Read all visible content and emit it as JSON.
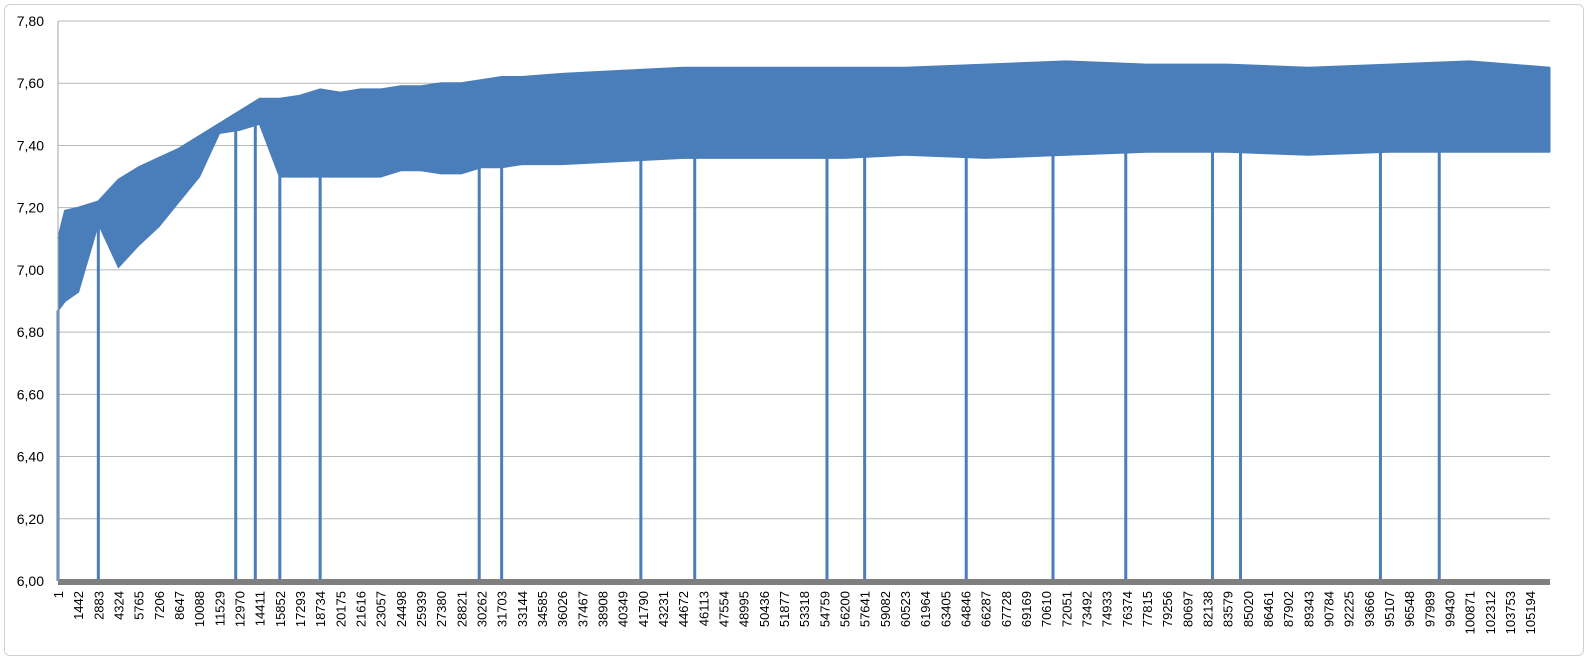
{
  "chart_data": {
    "type": "line",
    "title": "",
    "xlabel": "",
    "ylabel": "",
    "ylim": [
      6.0,
      7.8
    ],
    "y_ticks": [
      "6,00",
      "6,20",
      "6,40",
      "6,60",
      "6,80",
      "7,00",
      "7,20",
      "7,40",
      "7,60",
      "7,80"
    ],
    "x_range": [
      1,
      106615
    ],
    "x_tick_labels": [
      "1",
      "1442",
      "2883",
      "4324",
      "5765",
      "7206",
      "8647",
      "10088",
      "11529",
      "12970",
      "14411",
      "15852",
      "17293",
      "18734",
      "20175",
      "21616",
      "23057",
      "24498",
      "25939",
      "27380",
      "28821",
      "30262",
      "31703",
      "33144",
      "34585",
      "36026",
      "37467",
      "38908",
      "40349",
      "41790",
      "43231",
      "44672",
      "46113",
      "47554",
      "48995",
      "50436",
      "51877",
      "53318",
      "54759",
      "56200",
      "57641",
      "59082",
      "60523",
      "61964",
      "63405",
      "64846",
      "66287",
      "67728",
      "69169",
      "70610",
      "72051",
      "73492",
      "74933",
      "76374",
      "77815",
      "79256",
      "80697",
      "82138",
      "83579",
      "85020",
      "86461",
      "87902",
      "89343",
      "90784",
      "92225",
      "93666",
      "95107",
      "96548",
      "97989",
      "99430",
      "100871",
      "102312",
      "103753",
      "105194"
    ],
    "grid": true,
    "legend": "none",
    "series_color": "#4a7ebb",
    "series": [
      {
        "upper_envelope": {
          "x": [
            1,
            500,
            1442,
            2883,
            4324,
            5765,
            7206,
            8647,
            10088,
            11529,
            12970,
            14411,
            15852,
            17293,
            18734,
            20175,
            21616,
            23057,
            24498,
            25939,
            27380,
            28821,
            30262,
            31703,
            33144,
            36026,
            40349,
            44672,
            50436,
            56200,
            60523,
            66287,
            72051,
            77815,
            83579,
            89343,
            95107,
            100871,
            106615
          ],
          "y": [
            7.1,
            7.19,
            7.2,
            7.22,
            7.29,
            7.33,
            7.36,
            7.39,
            7.43,
            7.47,
            7.51,
            7.55,
            7.55,
            7.56,
            7.58,
            7.57,
            7.58,
            7.58,
            7.59,
            7.59,
            7.6,
            7.6,
            7.61,
            7.62,
            7.62,
            7.63,
            7.64,
            7.65,
            7.65,
            7.65,
            7.65,
            7.66,
            7.67,
            7.66,
            7.66,
            7.65,
            7.66,
            7.67,
            7.65
          ]
        },
        "lower_envelope": {
          "x": [
            1,
            500,
            1442,
            2883,
            4324,
            5765,
            7206,
            8647,
            10088,
            11529,
            12970,
            14411,
            15852,
            17293,
            18734,
            20175,
            21616,
            23057,
            24498,
            25939,
            27380,
            28821,
            30262,
            31703,
            33144,
            36026,
            40349,
            44672,
            50436,
            56200,
            60523,
            66287,
            72051,
            77815,
            83579,
            89343,
            95107,
            100871,
            106615
          ],
          "y": [
            6.87,
            6.9,
            6.93,
            7.15,
            7.01,
            7.08,
            7.14,
            7.22,
            7.3,
            7.44,
            7.45,
            7.47,
            7.3,
            7.3,
            7.3,
            7.3,
            7.3,
            7.3,
            7.32,
            7.32,
            7.31,
            7.31,
            7.33,
            7.33,
            7.34,
            7.34,
            7.35,
            7.36,
            7.36,
            7.36,
            7.37,
            7.36,
            7.37,
            7.38,
            7.38,
            7.37,
            7.38,
            7.38,
            7.38
          ]
        },
        "drops_to_zero_at": [
          1,
          2883,
          12700,
          14100,
          15852,
          18734,
          30100,
          31703,
          41650,
          45500,
          54950,
          57641,
          64900,
          71100,
          76300,
          82500,
          84500,
          94500,
          98700
        ]
      }
    ]
  }
}
